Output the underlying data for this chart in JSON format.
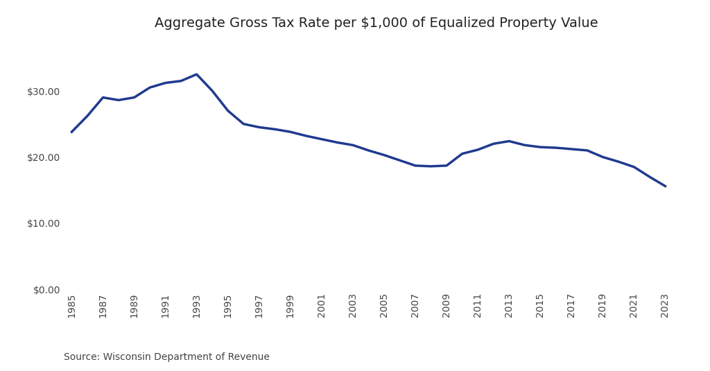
{
  "title": "Aggregate Gross Tax Rate per $1,000 of Equalized Property Value",
  "source": "Source: Wisconsin Department of Revenue",
  "line_color": "#1F3A8F",
  "background_color": "#FFFFFF",
  "years": [
    1985,
    1986,
    1987,
    1988,
    1989,
    1990,
    1991,
    1992,
    1993,
    1994,
    1995,
    1996,
    1997,
    1998,
    1999,
    2000,
    2001,
    2002,
    2003,
    2004,
    2005,
    2006,
    2007,
    2008,
    2009,
    2010,
    2011,
    2012,
    2013,
    2014,
    2015,
    2016,
    2017,
    2018,
    2019,
    2020,
    2021,
    2022,
    2023
  ],
  "values": [
    23.8,
    26.2,
    29.0,
    28.6,
    29.0,
    30.5,
    31.2,
    31.5,
    32.5,
    30.0,
    27.0,
    25.0,
    24.5,
    24.2,
    23.8,
    23.2,
    22.7,
    22.2,
    21.8,
    21.0,
    20.3,
    19.5,
    18.7,
    18.6,
    18.7,
    20.5,
    21.1,
    22.0,
    22.4,
    21.8,
    21.5,
    21.4,
    21.2,
    21.0,
    20.0,
    19.3,
    18.5,
    17.0,
    15.6
  ],
  "ytick_values": [
    0.0,
    10.0,
    20.0,
    30.0
  ],
  "xtick_years": [
    1985,
    1987,
    1989,
    1991,
    1993,
    1995,
    1997,
    1999,
    2001,
    2003,
    2005,
    2007,
    2009,
    2011,
    2013,
    2015,
    2017,
    2019,
    2021,
    2023
  ],
  "ylim": [
    0,
    37
  ],
  "xlim": [
    1984.5,
    2024.5
  ],
  "line_width": 2.5,
  "title_fontsize": 14,
  "tick_fontsize": 10,
  "source_fontsize": 10,
  "title_color": "#222222",
  "tick_color": "#444444",
  "source_color": "#444444"
}
